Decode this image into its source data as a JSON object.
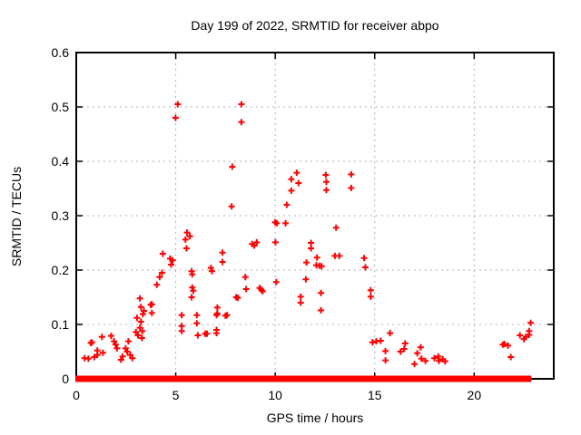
{
  "title": "Day 199 of 2022, SRMTID for receiver abpo",
  "colors": {
    "marker": "#ff0000",
    "axis": "#000000",
    "grid": "#b0b0b0",
    "background": "#ffffff"
  },
  "chart_data": {
    "type": "scatter",
    "title": "Day 199 of 2022, SRMTID for receiver abpo",
    "xlabel": "GPS time / hours",
    "ylabel": "SRMTID / TECUs",
    "xlim": [
      0,
      24
    ],
    "ylim": [
      0,
      0.6
    ],
    "xticks": [
      0,
      5,
      10,
      15,
      20
    ],
    "xtick_labels": [
      "0",
      "5",
      "10",
      "15",
      "20"
    ],
    "yticks": [
      0,
      0.1,
      0.2,
      0.3,
      0.4,
      0.5,
      0.6
    ],
    "ytick_labels": [
      "0",
      "0.1",
      "0.2",
      "0.3",
      "0.4",
      "0.5",
      "0.6"
    ],
    "grid": true,
    "legend": "none",
    "marker": "plus",
    "marker_color": "#ff0000",
    "series": [
      {
        "name": "SRMTID",
        "points": [
          [
            0.42,
            0.038
          ],
          [
            0.61,
            0.037
          ],
          [
            0.73,
            0.066
          ],
          [
            0.79,
            0.067
          ],
          [
            0.91,
            0.04
          ],
          [
            1.06,
            0.052
          ],
          [
            1.06,
            0.044
          ],
          [
            1.29,
            0.077
          ],
          [
            1.34,
            0.048
          ],
          [
            1.75,
            0.079
          ],
          [
            1.9,
            0.069
          ],
          [
            1.98,
            0.063
          ],
          [
            2.05,
            0.056
          ],
          [
            2.25,
            0.035
          ],
          [
            2.33,
            0.041
          ],
          [
            2.48,
            0.056
          ],
          [
            2.56,
            0.05
          ],
          [
            2.62,
            0.069
          ],
          [
            2.71,
            0.044
          ],
          [
            2.82,
            0.038
          ],
          [
            3.0,
            0.086
          ],
          [
            3.05,
            0.112
          ],
          [
            3.1,
            0.08
          ],
          [
            3.2,
            0.094
          ],
          [
            3.2,
            0.148
          ],
          [
            3.25,
            0.105
          ],
          [
            3.25,
            0.132
          ],
          [
            3.3,
            0.075
          ],
          [
            3.32,
            0.088
          ],
          [
            3.35,
            0.119
          ],
          [
            3.4,
            0.125
          ],
          [
            3.74,
            0.136
          ],
          [
            3.8,
            0.137
          ],
          [
            3.8,
            0.121
          ],
          [
            4.05,
            0.173
          ],
          [
            4.19,
            0.187
          ],
          [
            4.31,
            0.195
          ],
          [
            4.35,
            0.23
          ],
          [
            4.72,
            0.221
          ],
          [
            4.77,
            0.21
          ],
          [
            4.84,
            0.218
          ],
          [
            4.99,
            0.48
          ],
          [
            5.1,
            0.505
          ],
          [
            5.3,
            0.117
          ],
          [
            5.3,
            0.097
          ],
          [
            5.3,
            0.088
          ],
          [
            5.49,
            0.256
          ],
          [
            5.54,
            0.24
          ],
          [
            5.57,
            0.269
          ],
          [
            5.71,
            0.262
          ],
          [
            5.8,
            0.198
          ],
          [
            5.8,
            0.15
          ],
          [
            5.83,
            0.192
          ],
          [
            5.83,
            0.168
          ],
          [
            5.88,
            0.162
          ],
          [
            6.06,
            0.117
          ],
          [
            6.06,
            0.102
          ],
          [
            6.11,
            0.08
          ],
          [
            6.48,
            0.083
          ],
          [
            6.57,
            0.083
          ],
          [
            6.77,
            0.204
          ],
          [
            6.82,
            0.198
          ],
          [
            7.05,
            0.117
          ],
          [
            7.05,
            0.09
          ],
          [
            7.05,
            0.084
          ],
          [
            7.09,
            0.131
          ],
          [
            7.09,
            0.12
          ],
          [
            7.35,
            0.232
          ],
          [
            7.35,
            0.215
          ],
          [
            7.5,
            0.116
          ],
          [
            7.58,
            0.117
          ],
          [
            7.81,
            0.317
          ],
          [
            7.84,
            0.39
          ],
          [
            8.04,
            0.15
          ],
          [
            8.12,
            0.149
          ],
          [
            8.3,
            0.505
          ],
          [
            8.3,
            0.472
          ],
          [
            8.5,
            0.187
          ],
          [
            8.54,
            0.165
          ],
          [
            8.84,
            0.248
          ],
          [
            8.95,
            0.245
          ],
          [
            9.07,
            0.251
          ],
          [
            9.22,
            0.167
          ],
          [
            9.3,
            0.164
          ],
          [
            9.37,
            0.161
          ],
          [
            10.0,
            0.288
          ],
          [
            10.08,
            0.286
          ],
          [
            10.01,
            0.251
          ],
          [
            10.05,
            0.178
          ],
          [
            10.52,
            0.286
          ],
          [
            10.58,
            0.32
          ],
          [
            10.81,
            0.367
          ],
          [
            10.81,
            0.346
          ],
          [
            11.08,
            0.379
          ],
          [
            11.17,
            0.36
          ],
          [
            11.28,
            0.151
          ],
          [
            11.28,
            0.14
          ],
          [
            11.54,
            0.183
          ],
          [
            11.57,
            0.214
          ],
          [
            11.8,
            0.25
          ],
          [
            11.8,
            0.24
          ],
          [
            12.07,
            0.209
          ],
          [
            12.1,
            0.223
          ],
          [
            12.22,
            0.208
          ],
          [
            12.33,
            0.207
          ],
          [
            12.3,
            0.158
          ],
          [
            12.3,
            0.126
          ],
          [
            12.54,
            0.375
          ],
          [
            12.57,
            0.362
          ],
          [
            12.57,
            0.347
          ],
          [
            13.0,
            0.226
          ],
          [
            13.06,
            0.278
          ],
          [
            13.22,
            0.226
          ],
          [
            13.82,
            0.376
          ],
          [
            13.82,
            0.351
          ],
          [
            14.47,
            0.222
          ],
          [
            14.53,
            0.205
          ],
          [
            14.8,
            0.163
          ],
          [
            14.8,
            0.151
          ],
          [
            14.89,
            0.067
          ],
          [
            15.08,
            0.069
          ],
          [
            15.3,
            0.07
          ],
          [
            15.54,
            0.051
          ],
          [
            15.54,
            0.034
          ],
          [
            15.77,
            0.084
          ],
          [
            16.3,
            0.05
          ],
          [
            16.48,
            0.055
          ],
          [
            16.53,
            0.065
          ],
          [
            17.0,
            0.027
          ],
          [
            17.14,
            0.047
          ],
          [
            17.31,
            0.058
          ],
          [
            17.35,
            0.037
          ],
          [
            17.55,
            0.033
          ],
          [
            18.0,
            0.038
          ],
          [
            18.2,
            0.041
          ],
          [
            18.23,
            0.033
          ],
          [
            18.42,
            0.036
          ],
          [
            18.54,
            0.032
          ],
          [
            21.44,
            0.063
          ],
          [
            21.52,
            0.064
          ],
          [
            21.7,
            0.061
          ],
          [
            21.84,
            0.04
          ],
          [
            22.3,
            0.08
          ],
          [
            22.5,
            0.073
          ],
          [
            22.6,
            0.077
          ],
          [
            22.76,
            0.088
          ],
          [
            22.76,
            0.081
          ],
          [
            22.84,
            0.103
          ]
        ]
      }
    ],
    "zero_row_segments": [
      [
        0.05,
        0.2
      ],
      [
        0.3,
        0.5
      ],
      [
        0.6,
        0.8
      ],
      [
        0.9,
        1.55
      ],
      [
        1.65,
        2.1
      ],
      [
        2.2,
        2.5
      ],
      [
        2.6,
        3.35
      ],
      [
        3.45,
        3.7
      ],
      [
        3.8,
        4.1
      ],
      [
        4.2,
        4.8
      ],
      [
        4.9,
        5.65
      ],
      [
        5.75,
        6.0
      ],
      [
        6.1,
        6.65
      ],
      [
        6.75,
        7.2
      ],
      [
        7.3,
        7.95
      ],
      [
        8.05,
        8.95
      ],
      [
        9.05,
        9.65
      ],
      [
        9.75,
        10.2
      ],
      [
        10.3,
        10.75
      ],
      [
        10.85,
        11.65
      ],
      [
        11.75,
        12.35
      ],
      [
        12.45,
        12.95
      ],
      [
        13.05,
        13.55
      ],
      [
        13.65,
        14.35
      ],
      [
        14.45,
        14.8
      ],
      [
        14.9,
        15.35
      ],
      [
        15.45,
        16.15
      ],
      [
        16.25,
        16.85
      ],
      [
        16.95,
        17.65
      ],
      [
        17.75,
        18.35
      ],
      [
        18.45,
        18.8
      ],
      [
        18.9,
        19.55
      ],
      [
        19.65,
        20.25
      ],
      [
        20.35,
        20.85
      ],
      [
        20.95,
        21.15
      ],
      [
        21.25,
        21.7
      ],
      [
        21.8,
        22.35
      ],
      [
        22.45,
        22.78
      ]
    ]
  }
}
